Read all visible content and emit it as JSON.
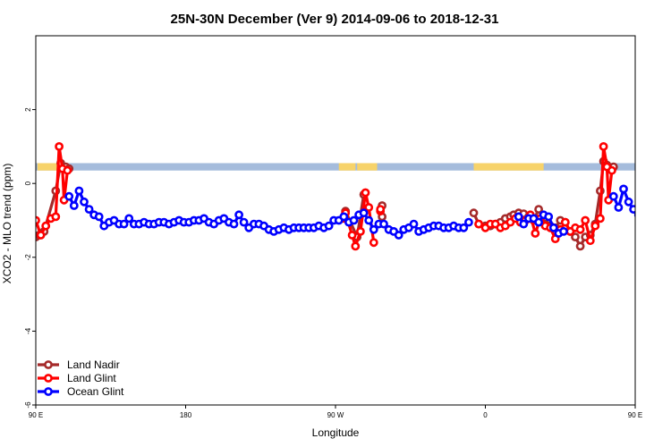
{
  "chart_data": {
    "type": "line",
    "title": "25N-30N December (Ver 9)   2014-09-06 to 2018-12-31",
    "xlabel": "Longitude",
    "ylabel": "XCO2 - MLO trend (ppm)",
    "xlim": [
      90,
      450
    ],
    "ylim": [
      -6,
      4
    ],
    "x_ticks": [
      {
        "value": 90,
        "label": "90 E"
      },
      {
        "value": 180,
        "label": "180"
      },
      {
        "value": 270,
        "label": "90 W"
      },
      {
        "value": 360,
        "label": "0"
      },
      {
        "value": 450,
        "label": "90 E"
      },
      {
        "value": 540,
        "label": "180"
      }
    ],
    "y_ticks": [
      {
        "value": -6,
        "label": "-6"
      },
      {
        "value": -4,
        "label": "-4"
      },
      {
        "value": -2,
        "label": "-2"
      },
      {
        "value": 0,
        "label": "0"
      },
      {
        "value": 2,
        "label": "2"
      }
    ],
    "land_sea_bar": {
      "y_range": [
        0.35,
        0.55
      ],
      "ocean_color": "#a5bcdc",
      "land_color": "#f7d36a",
      "land_segments": [
        [
          91,
          107
        ],
        [
          272,
          282
        ],
        [
          283,
          295
        ],
        [
          353,
          395
        ],
        [
          451,
          467
        ],
        [
          541,
          550
        ]
      ]
    },
    "legend": {
      "position": "bottom-left",
      "entries": [
        {
          "name": "Land Nadir",
          "color": "#a52a2a"
        },
        {
          "name": "Land Glint",
          "color": "#ff0000"
        },
        {
          "name": "Ocean Glint",
          "color": "#0000ff"
        }
      ]
    },
    "series": [
      {
        "name": "Land Nadir",
        "color": "#a52a2a",
        "segments": [
          [
            [
              90,
              -1.45
            ],
            [
              92,
              -1.4
            ],
            [
              95,
              -1.3
            ],
            [
              102,
              -0.2
            ],
            [
              105,
              0.55
            ],
            [
              108,
              0.45
            ],
            [
              110,
              0.4
            ]
          ],
          [
            [
              276,
              -0.75
            ],
            [
              283,
              -1.45
            ],
            [
              287,
              -0.3
            ]
          ],
          [
            [
              298,
              -0.6
            ],
            [
              298,
              -0.9
            ]
          ],
          [
            [
              353,
              -0.8
            ],
            [
              356,
              -1.1
            ],
            [
              360,
              -1.15
            ],
            [
              363,
              -1.15
            ],
            [
              366,
              -1.1
            ],
            [
              369,
              -1.05
            ],
            [
              372,
              -0.95
            ],
            [
              375,
              -0.9
            ],
            [
              377,
              -0.85
            ],
            [
              380,
              -0.8
            ],
            [
              383,
              -0.82
            ],
            [
              386,
              -0.9
            ],
            [
              389,
              -1.0
            ],
            [
              392,
              -0.7
            ],
            [
              396,
              -1.1
            ],
            [
              399,
              -1.15
            ],
            [
              402,
              -1.2
            ],
            [
              405,
              -1.0
            ],
            [
              408,
              -1.05
            ],
            [
              411,
              -1.3
            ],
            [
              414,
              -1.45
            ],
            [
              417,
              -1.7
            ],
            [
              420,
              -1.45
            ],
            [
              423,
              -1.4
            ],
            [
              426,
              -1.1
            ],
            [
              429,
              -0.2
            ],
            [
              431,
              0.6
            ],
            [
              433,
              0.5
            ],
            [
              436,
              0.4
            ],
            [
              437,
              0.45
            ]
          ]
        ]
      },
      {
        "name": "Land Glint",
        "color": "#ff0000",
        "segments": [
          [
            [
              90,
              -1.0
            ],
            [
              93,
              -1.4
            ],
            [
              96,
              -1.15
            ],
            [
              99,
              -0.95
            ],
            [
              102,
              -0.9
            ],
            [
              104,
              1.0
            ],
            [
              106,
              0.4
            ],
            [
              107,
              -0.45
            ],
            [
              109,
              0.35
            ]
          ],
          [
            [
              275,
              -0.95
            ],
            [
              276,
              -0.8
            ],
            [
              280,
              -1.4
            ],
            [
              282,
              -1.7
            ],
            [
              285,
              -1.3
            ],
            [
              288,
              -0.25
            ],
            [
              290,
              -0.65
            ],
            [
              293,
              -1.6
            ]
          ],
          [
            [
              297,
              -0.75
            ],
            [
              297,
              -0.7
            ]
          ],
          [
            [
              356,
              -1.1
            ],
            [
              360,
              -1.2
            ],
            [
              363,
              -1.1
            ],
            [
              366,
              -1.1
            ],
            [
              369,
              -1.2
            ],
            [
              372,
              -1.15
            ],
            [
              375,
              -1.05
            ],
            [
              378,
              -0.95
            ],
            [
              381,
              -1.05
            ],
            [
              384,
              -1.0
            ],
            [
              387,
              -0.85
            ],
            [
              390,
              -1.35
            ],
            [
              393,
              -0.95
            ],
            [
              396,
              -1.15
            ],
            [
              399,
              -1.2
            ],
            [
              402,
              -1.5
            ],
            [
              405,
              -1.25
            ],
            [
              408,
              -1.05
            ],
            [
              411,
              -1.3
            ],
            [
              414,
              -1.2
            ],
            [
              417,
              -1.25
            ],
            [
              420,
              -1.0
            ],
            [
              423,
              -1.55
            ],
            [
              426,
              -1.15
            ],
            [
              429,
              -0.95
            ],
            [
              431,
              1.0
            ],
            [
              433,
              0.45
            ],
            [
              434,
              -0.45
            ],
            [
              436,
              0.35
            ]
          ]
        ]
      },
      {
        "name": "Ocean Glint",
        "color": "#0000ff",
        "segments": [
          [
            [
              110,
              -0.35
            ],
            [
              113,
              -0.6
            ],
            [
              116,
              -0.2
            ],
            [
              119,
              -0.5
            ],
            [
              122,
              -0.7
            ],
            [
              125,
              -0.85
            ],
            [
              128,
              -0.9
            ],
            [
              131,
              -1.15
            ],
            [
              134,
              -1.05
            ],
            [
              137,
              -1.0
            ],
            [
              140,
              -1.1
            ],
            [
              143,
              -1.1
            ],
            [
              146,
              -0.95
            ],
            [
              149,
              -1.1
            ],
            [
              152,
              -1.1
            ],
            [
              155,
              -1.05
            ],
            [
              158,
              -1.1
            ],
            [
              161,
              -1.1
            ],
            [
              164,
              -1.05
            ],
            [
              167,
              -1.05
            ],
            [
              170,
              -1.1
            ],
            [
              173,
              -1.05
            ],
            [
              176,
              -1.0
            ],
            [
              179,
              -1.05
            ],
            [
              182,
              -1.05
            ],
            [
              185,
              -1.0
            ],
            [
              188,
              -1.0
            ],
            [
              191,
              -0.95
            ],
            [
              194,
              -1.05
            ],
            [
              197,
              -1.1
            ],
            [
              200,
              -1.0
            ],
            [
              203,
              -0.95
            ],
            [
              206,
              -1.05
            ],
            [
              209,
              -1.1
            ],
            [
              212,
              -0.85
            ],
            [
              215,
              -1.05
            ],
            [
              218,
              -1.2
            ],
            [
              221,
              -1.1
            ],
            [
              224,
              -1.1
            ],
            [
              227,
              -1.15
            ],
            [
              230,
              -1.25
            ],
            [
              233,
              -1.3
            ],
            [
              236,
              -1.25
            ],
            [
              239,
              -1.2
            ],
            [
              242,
              -1.25
            ],
            [
              245,
              -1.2
            ],
            [
              248,
              -1.2
            ],
            [
              251,
              -1.2
            ],
            [
              254,
              -1.2
            ],
            [
              257,
              -1.2
            ],
            [
              260,
              -1.15
            ],
            [
              263,
              -1.2
            ],
            [
              266,
              -1.15
            ],
            [
              269,
              -1.0
            ],
            [
              272,
              -1.0
            ],
            [
              275,
              -0.9
            ],
            [
              278,
              -1.05
            ],
            [
              281,
              -1.0
            ],
            [
              284,
              -0.85
            ],
            [
              287,
              -0.8
            ],
            [
              290,
              -1.0
            ],
            [
              293,
              -1.25
            ],
            [
              296,
              -1.1
            ],
            [
              299,
              -1.1
            ],
            [
              302,
              -1.25
            ],
            [
              305,
              -1.3
            ],
            [
              308,
              -1.4
            ],
            [
              311,
              -1.25
            ],
            [
              314,
              -1.2
            ],
            [
              317,
              -1.1
            ],
            [
              320,
              -1.3
            ],
            [
              323,
              -1.25
            ],
            [
              326,
              -1.2
            ],
            [
              329,
              -1.15
            ],
            [
              332,
              -1.15
            ],
            [
              335,
              -1.2
            ],
            [
              338,
              -1.2
            ],
            [
              341,
              -1.15
            ],
            [
              344,
              -1.2
            ],
            [
              347,
              -1.2
            ],
            [
              350,
              -1.05
            ]
          ],
          [
            [
              380,
              -0.9
            ],
            [
              383,
              -1.1
            ],
            [
              386,
              -0.95
            ],
            [
              389,
              -0.95
            ],
            [
              392,
              -1.05
            ],
            [
              395,
              -0.85
            ],
            [
              398,
              -0.9
            ],
            [
              401,
              -1.2
            ],
            [
              404,
              -1.35
            ],
            [
              407,
              -1.3
            ]
          ],
          [
            [
              437,
              -0.35
            ],
            [
              440,
              -0.65
            ],
            [
              443,
              -0.15
            ],
            [
              446,
              -0.5
            ],
            [
              449,
              -0.7
            ],
            [
              452,
              -0.85
            ],
            [
              455,
              -0.9
            ],
            [
              458,
              -1.15
            ],
            [
              461,
              -1.05
            ],
            [
              464,
              -1.0
            ],
            [
              467,
              -1.15
            ],
            [
              470,
              -1.15
            ]
          ]
        ]
      }
    ]
  }
}
